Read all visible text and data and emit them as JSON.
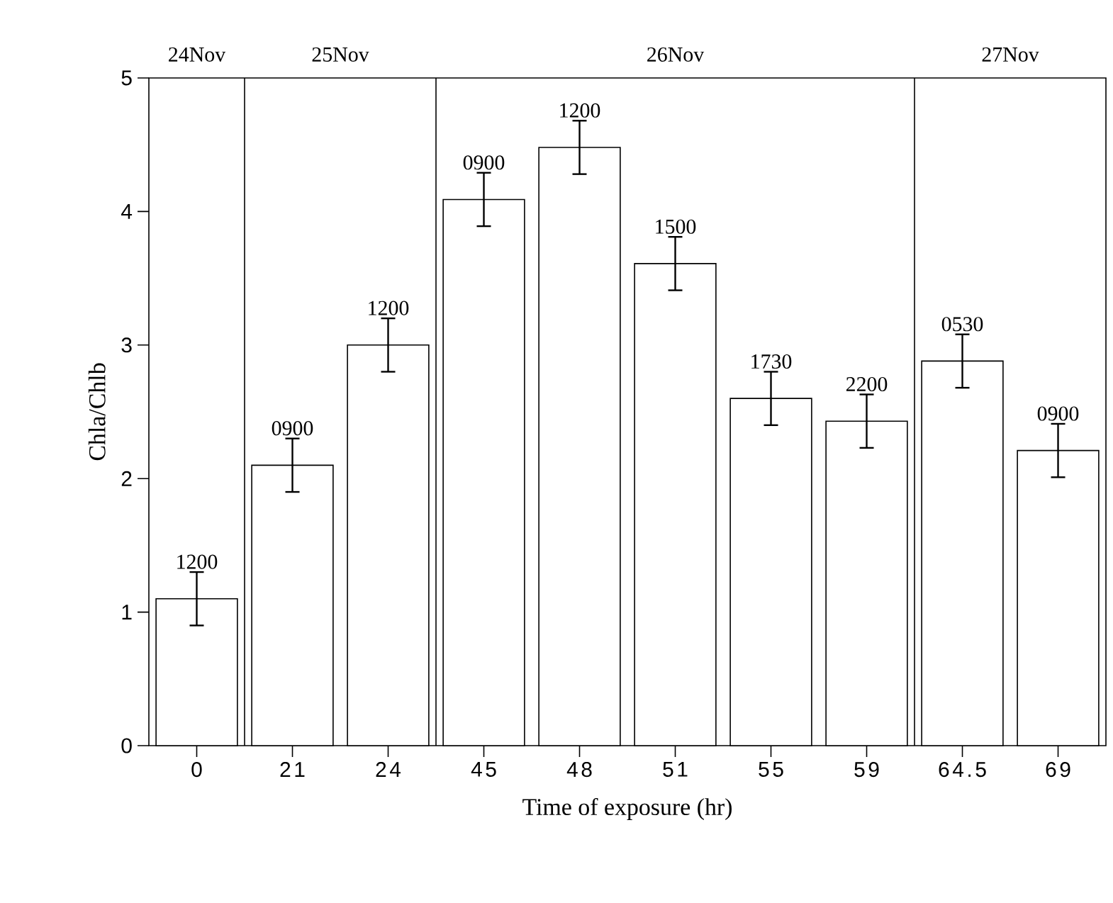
{
  "chart_data": {
    "type": "bar",
    "xlabel": "Time of exposure (hr)",
    "ylabel": "Chla/Chlb",
    "categories": [
      "0",
      "21",
      "24",
      "45",
      "48",
      "51",
      "55",
      "59",
      "64.5",
      "69"
    ],
    "values": [
      1.1,
      2.1,
      3.0,
      4.09,
      4.48,
      3.61,
      2.6,
      2.43,
      2.88,
      2.21
    ],
    "errors": [
      0.2,
      0.2,
      0.2,
      0.2,
      0.2,
      0.2,
      0.2,
      0.2,
      0.2,
      0.2
    ],
    "color": "#ffffff",
    "ylim": [
      0,
      5
    ],
    "yticks": [
      0,
      1,
      2,
      3,
      4,
      5
    ],
    "annotations": [
      "24Nov",
      "25Nov",
      "26Nov",
      "27Nov",
      {
        "text": "1200",
        "x": "0",
        "y": 1.3
      },
      {
        "text": "0900",
        "x": "21",
        "y": 2.3
      },
      {
        "text": "1200",
        "x": "24",
        "y": 3.2
      },
      {
        "text": "0900",
        "x": "45",
        "y": 4.29
      },
      {
        "text": "1200",
        "x": "48",
        "y": 4.68
      },
      {
        "text": "1500",
        "x": "51",
        "y": 3.81
      },
      {
        "text": "1730",
        "x": "55",
        "y": 2.8
      },
      {
        "text": "2200",
        "x": "59",
        "y": 2.63
      },
      {
        "text": "0530",
        "x": "64.5",
        "y": 3.08
      },
      {
        "text": "0900",
        "x": "69",
        "y": 2.41
      }
    ]
  }
}
